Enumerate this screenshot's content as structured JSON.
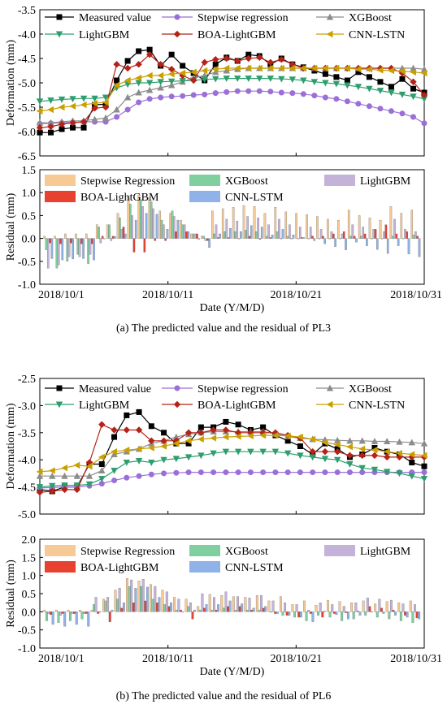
{
  "figure": {
    "caption_a": "(a) The predicted value and the residual of PL3",
    "caption_b": "(b) The predicted value and the residual of PL6"
  },
  "colors": {
    "measured": "#000000",
    "stepwise": "#9b6fd8",
    "xgboost": "#8c8c8c",
    "lightgbm": "#2e9e6e",
    "boa_lightgbm": "#b52217",
    "cnn_lstm": "#c9a000",
    "res_stepwise": "#f6c995",
    "res_xgboost": "#7fcf9f",
    "res_lightgbm": "#c4b3d8",
    "res_boa": "#e8412f",
    "res_cnn": "#8fb3e8"
  },
  "chart_data": [
    {
      "id": "pl3_deformation",
      "type": "line",
      "ylabel": "Deformation (mm)",
      "xlabel": "",
      "ylim": [
        -6.5,
        -3.5
      ],
      "yticks": [
        -3.5,
        -4.0,
        -4.5,
        -5.0,
        -5.5,
        -6.0,
        -6.5
      ],
      "xticks": [
        "",
        "",
        "",
        ""
      ],
      "series": [
        {
          "name": "Measured value",
          "key": "measured",
          "marker": "square",
          "values": [
            -6.02,
            -6.02,
            -5.95,
            -5.92,
            -5.92,
            -5.45,
            -5.44,
            -4.95,
            -4.55,
            -4.35,
            -4.32,
            -4.65,
            -4.42,
            -4.65,
            -4.8,
            -4.95,
            -4.62,
            -4.48,
            -4.55,
            -4.42,
            -4.45,
            -4.62,
            -4.5,
            -4.62,
            -4.68,
            -4.75,
            -4.82,
            -4.88,
            -4.95,
            -4.78,
            -4.88,
            -4.98,
            -5.08,
            -4.92,
            -5.12,
            -5.2
          ]
        },
        {
          "name": "Stepwise regression",
          "key": "stepwise",
          "marker": "circle",
          "values": [
            -5.84,
            -5.83,
            -5.82,
            -5.81,
            -5.8,
            -5.8,
            -5.8,
            -5.7,
            -5.55,
            -5.4,
            -5.33,
            -5.3,
            -5.28,
            -5.27,
            -5.25,
            -5.24,
            -5.21,
            -5.19,
            -5.17,
            -5.17,
            -5.17,
            -5.18,
            -5.2,
            -5.21,
            -5.23,
            -5.26,
            -5.3,
            -5.33,
            -5.38,
            -5.43,
            -5.48,
            -5.53,
            -5.58,
            -5.63,
            -5.7,
            -5.83
          ]
        },
        {
          "name": "XGBoost",
          "key": "xgboost",
          "marker": "triangle-up",
          "values": [
            -5.82,
            -5.82,
            -5.8,
            -5.78,
            -5.78,
            -5.75,
            -5.72,
            -5.55,
            -5.3,
            -5.2,
            -5.15,
            -5.1,
            -5.05,
            -4.98,
            -4.9,
            -4.85,
            -4.78,
            -4.75,
            -4.72,
            -4.7,
            -4.7,
            -4.7,
            -4.7,
            -4.7,
            -4.7,
            -4.7,
            -4.7,
            -4.7,
            -4.7,
            -4.7,
            -4.7,
            -4.7,
            -4.7,
            -4.7,
            -4.7,
            -4.72
          ]
        },
        {
          "name": "LightGBM",
          "key": "lightgbm",
          "marker": "triangle-down",
          "values": [
            -5.38,
            -5.36,
            -5.34,
            -5.33,
            -5.32,
            -5.32,
            -5.3,
            -5.1,
            -5.03,
            -5.0,
            -5.0,
            -4.98,
            -4.97,
            -4.96,
            -4.95,
            -4.93,
            -4.92,
            -4.91,
            -4.91,
            -4.91,
            -4.91,
            -4.91,
            -4.92,
            -4.93,
            -4.95,
            -4.98,
            -5.0,
            -5.02,
            -5.05,
            -5.08,
            -5.12,
            -5.16,
            -5.2,
            -5.24,
            -5.28,
            -5.33
          ]
        },
        {
          "name": "BOA-LightGBM",
          "key": "boa_lightgbm",
          "marker": "diamond",
          "values": [
            -5.92,
            -5.9,
            -5.85,
            -5.82,
            -5.8,
            -5.52,
            -5.5,
            -4.62,
            -4.7,
            -4.62,
            -4.42,
            -4.62,
            -4.72,
            -4.85,
            -4.95,
            -4.58,
            -4.52,
            -4.5,
            -4.55,
            -4.5,
            -4.48,
            -4.58,
            -4.52,
            -4.62,
            -4.7,
            -4.7,
            -4.7,
            -4.7,
            -4.7,
            -4.7,
            -4.7,
            -4.7,
            -4.7,
            -4.8,
            -4.98,
            -5.25
          ]
        },
        {
          "name": "CNN-LSTN",
          "key": "cnn_lstm",
          "marker": "triangle-left",
          "values": [
            -5.58,
            -5.55,
            -5.5,
            -5.48,
            -5.45,
            -5.42,
            -5.4,
            -5.05,
            -4.95,
            -4.9,
            -4.85,
            -4.85,
            -4.82,
            -4.8,
            -4.78,
            -4.75,
            -4.72,
            -4.7,
            -4.7,
            -4.7,
            -4.7,
            -4.7,
            -4.7,
            -4.7,
            -4.7,
            -4.7,
            -4.7,
            -4.7,
            -4.7,
            -4.72,
            -4.72,
            -4.74,
            -4.75,
            -4.76,
            -4.78,
            -4.8
          ]
        }
      ]
    },
    {
      "id": "pl3_residual",
      "type": "bar",
      "ylabel": "Residual (mm)",
      "xlabel": "Date (Y/M/D)",
      "ylim": [
        -1.0,
        1.5
      ],
      "yticks": [
        1.5,
        1.0,
        0.5,
        0.0,
        -0.5,
        -1.0
      ],
      "xticks": [
        "2018/10/1",
        "2018/10/11",
        "2018/10/21",
        "2018/10/31"
      ],
      "series": [
        {
          "name": "Stepwise Regression",
          "key": "res_stepwise",
          "values": [
            0.05,
            0.05,
            0.1,
            0.1,
            0.1,
            0.3,
            0.3,
            0.55,
            0.9,
            0.95,
            0.9,
            0.6,
            0.55,
            0.4,
            0.1,
            0.05,
            0.6,
            0.65,
            0.68,
            0.72,
            0.7,
            0.55,
            0.68,
            0.58,
            0.55,
            0.52,
            0.48,
            0.42,
            0.4,
            0.62,
            0.5,
            0.45,
            0.4,
            0.7,
            0.55,
            0.62
          ]
        },
        {
          "name": "XGBoost",
          "key": "res_xgboost",
          "values": [
            -0.25,
            -0.65,
            -0.5,
            -0.35,
            -0.55,
            0.25,
            0.3,
            0.45,
            0.75,
            0.85,
            0.8,
            0.4,
            0.6,
            0.3,
            0.1,
            0.05,
            0.1,
            0.15,
            0.15,
            0.18,
            0.15,
            0.05,
            0.15,
            0.05,
            0.0,
            0.0,
            0.0,
            0.0,
            0.0,
            0.05,
            0.05,
            0.0,
            0.0,
            0.05,
            0.0,
            0.08
          ]
        },
        {
          "name": "LightGBM",
          "key": "res_lightgbm",
          "values": [
            -0.65,
            -0.58,
            -0.4,
            -0.4,
            -0.35,
            -0.1,
            -0.05,
            0.2,
            0.5,
            0.7,
            0.65,
            0.3,
            0.48,
            0.3,
            0.1,
            -0.05,
            0.3,
            0.42,
            0.38,
            0.48,
            0.45,
            0.3,
            0.42,
            0.3,
            0.25,
            0.25,
            0.2,
            0.15,
            0.1,
            0.3,
            0.25,
            0.2,
            0.15,
            0.42,
            0.2,
            0.15
          ]
        },
        {
          "name": "BOA-LightGBM",
          "key": "res_boa",
          "values": [
            -0.1,
            -0.12,
            -0.1,
            -0.12,
            -0.12,
            0.05,
            0.05,
            0.25,
            -0.3,
            -0.3,
            -0.05,
            -0.05,
            0.15,
            0.15,
            0.1,
            -0.05,
            0.02,
            0.02,
            0.0,
            0.05,
            -0.02,
            0.02,
            0.0,
            0.0,
            0.02,
            0.05,
            0.05,
            0.1,
            0.15,
            0.05,
            0.1,
            0.2,
            0.3,
            0.1,
            0.15,
            0.05
          ]
        },
        {
          "name": "CNN-LSTM",
          "key": "res_cnn",
          "values": [
            -0.44,
            -0.47,
            -0.45,
            -0.44,
            -0.47,
            0.0,
            0.04,
            0.1,
            0.4,
            0.55,
            0.53,
            0.2,
            0.4,
            0.15,
            -0.02,
            -0.2,
            0.1,
            0.22,
            0.15,
            0.28,
            0.25,
            0.08,
            0.2,
            0.08,
            0.02,
            -0.05,
            -0.12,
            -0.18,
            -0.25,
            -0.08,
            -0.16,
            -0.24,
            -0.33,
            -0.16,
            -0.34,
            -0.4
          ]
        }
      ]
    },
    {
      "id": "pl6_deformation",
      "type": "line",
      "ylabel": "Deformation (mm)",
      "xlabel": "",
      "ylim": [
        -5.0,
        -2.5
      ],
      "yticks": [
        -2.5,
        -3.0,
        -3.5,
        -4.0,
        -4.5,
        -5.0
      ],
      "xticks": [
        "",
        "",
        "",
        ""
      ],
      "series": [
        {
          "name": "Measured value",
          "key": "measured",
          "marker": "square",
          "values": [
            -4.55,
            -4.58,
            -4.5,
            -4.5,
            -4.08,
            -4.08,
            -3.58,
            -3.18,
            -3.12,
            -3.38,
            -3.5,
            -3.7,
            -3.7,
            -3.4,
            -3.4,
            -3.3,
            -3.35,
            -3.45,
            -3.4,
            -3.55,
            -3.65,
            -3.75,
            -3.9,
            -3.7,
            -3.8,
            -3.95,
            -3.9,
            -3.78,
            -3.85,
            -3.9,
            -4.05,
            -4.12
          ]
        },
        {
          "name": "Stepwise regression",
          "key": "stepwise",
          "marker": "circle",
          "values": [
            -4.52,
            -4.51,
            -4.5,
            -4.5,
            -4.48,
            -4.44,
            -4.38,
            -4.33,
            -4.3,
            -4.27,
            -4.25,
            -4.24,
            -4.23,
            -4.23,
            -4.23,
            -4.23,
            -4.23,
            -4.23,
            -4.23,
            -4.23,
            -4.23,
            -4.23,
            -4.23,
            -4.23,
            -4.23,
            -4.23,
            -4.23,
            -4.23,
            -4.23,
            -4.23,
            -4.23,
            -4.23
          ]
        },
        {
          "name": "XGBoost",
          "key": "xgboost",
          "marker": "triangle-up",
          "values": [
            -4.3,
            -4.3,
            -4.3,
            -4.3,
            -4.3,
            -4.2,
            -3.9,
            -3.85,
            -3.8,
            -3.7,
            -3.65,
            -3.58,
            -3.53,
            -3.5,
            -3.48,
            -3.48,
            -3.48,
            -3.48,
            -3.48,
            -3.52,
            -3.57,
            -3.6,
            -3.62,
            -3.63,
            -3.64,
            -3.65,
            -3.65,
            -3.66,
            -3.66,
            -3.67,
            -3.68,
            -3.7
          ]
        },
        {
          "name": "LightGBM",
          "key": "lightgbm",
          "marker": "triangle-down",
          "values": [
            -4.5,
            -4.48,
            -4.47,
            -4.47,
            -4.45,
            -4.35,
            -4.2,
            -4.05,
            -4.02,
            -4.05,
            -4.0,
            -3.98,
            -3.95,
            -3.92,
            -3.88,
            -3.85,
            -3.85,
            -3.85,
            -3.85,
            -3.85,
            -3.88,
            -3.92,
            -3.95,
            -3.98,
            -4.0,
            -4.08,
            -4.15,
            -4.18,
            -4.22,
            -4.25,
            -4.3,
            -4.35
          ]
        },
        {
          "name": "BOA-LightGBM",
          "key": "boa_lightgbm",
          "marker": "diamond",
          "values": [
            -4.6,
            -4.58,
            -4.55,
            -4.55,
            -4.05,
            -3.35,
            -3.45,
            -3.45,
            -3.45,
            -3.65,
            -3.65,
            -3.65,
            -3.5,
            -3.5,
            -3.45,
            -3.45,
            -3.5,
            -3.5,
            -3.5,
            -3.5,
            -3.55,
            -3.6,
            -3.85,
            -3.85,
            -3.85,
            -3.92,
            -3.92,
            -3.92,
            -3.95,
            -3.95,
            -3.95,
            -3.95
          ]
        },
        {
          "name": "CNN-LSTN",
          "key": "cnn_lstm",
          "marker": "triangle-left",
          "values": [
            -4.22,
            -4.2,
            -4.15,
            -4.1,
            -4.12,
            -3.95,
            -3.85,
            -3.82,
            -3.8,
            -3.78,
            -3.75,
            -3.7,
            -3.65,
            -3.62,
            -3.6,
            -3.58,
            -3.57,
            -3.56,
            -3.55,
            -3.55,
            -3.56,
            -3.58,
            -3.62,
            -3.68,
            -3.72,
            -3.76,
            -3.8,
            -3.82,
            -3.85,
            -3.88,
            -3.9,
            -3.92
          ]
        }
      ]
    },
    {
      "id": "pl6_residual",
      "type": "bar",
      "ylabel": "Residual (mm)",
      "xlabel": "Date (Y/M/D)",
      "ylim": [
        -1.0,
        2.0
      ],
      "yticks": [
        2.0,
        1.5,
        1.0,
        0.5,
        0.0,
        -0.5,
        -1.0
      ],
      "xticks": [
        "2018/10/1",
        "2018/10/11",
        "2018/10/21",
        "2018/10/31"
      ],
      "series": [
        {
          "name": "Stepwise Regression",
          "key": "res_stepwise",
          "values": [
            0.05,
            0.05,
            0.05,
            0.05,
            0.05,
            0.35,
            0.6,
            0.92,
            0.85,
            0.75,
            0.6,
            0.4,
            0.35,
            0.15,
            0.48,
            0.45,
            0.42,
            0.4,
            0.45,
            0.3,
            0.42,
            0.2,
            0.3,
            0.18,
            0.32,
            0.28,
            0.25,
            0.3,
            0.22,
            0.28,
            0.25,
            0.3
          ]
        },
        {
          "name": "XGBoost",
          "key": "res_xgboost",
          "values": [
            -0.25,
            -0.3,
            -0.25,
            -0.2,
            0.2,
            0.3,
            0.35,
            0.7,
            0.7,
            0.35,
            0.2,
            0.05,
            0.15,
            0.05,
            0.05,
            0.1,
            0.05,
            0.05,
            0.05,
            0.0,
            -0.1,
            -0.15,
            -0.25,
            -0.1,
            -0.15,
            -0.25,
            -0.2,
            -0.1,
            -0.15,
            -0.2,
            -0.25,
            -0.3
          ]
        },
        {
          "name": "LightGBM",
          "key": "res_lightgbm",
          "values": [
            -0.05,
            -0.1,
            -0.05,
            -0.05,
            0.4,
            0.4,
            0.65,
            0.88,
            0.9,
            0.7,
            0.55,
            0.35,
            0.25,
            0.5,
            0.4,
            0.55,
            0.42,
            0.38,
            0.45,
            0.3,
            0.25,
            0.2,
            0.05,
            0.25,
            0.2,
            0.15,
            0.25,
            0.38,
            0.35,
            0.32,
            0.22,
            0.2
          ]
        },
        {
          "name": "BOA-LightGBM",
          "key": "res_boa",
          "values": [
            -0.08,
            -0.05,
            -0.05,
            -0.05,
            -0.05,
            -0.28,
            0.1,
            0.25,
            0.3,
            0.25,
            0.15,
            0.05,
            -0.2,
            0.1,
            0.05,
            0.15,
            0.15,
            0.05,
            0.1,
            -0.05,
            -0.1,
            -0.15,
            -0.05,
            -0.15,
            -0.05,
            -0.03,
            0.02,
            0.15,
            0.1,
            0.05,
            -0.1,
            -0.17
          ]
        },
        {
          "name": "CNN-LSTM",
          "key": "res_cnn",
          "values": [
            -0.35,
            -0.4,
            -0.35,
            -0.4,
            0.0,
            0.05,
            0.25,
            0.65,
            0.68,
            0.4,
            0.25,
            0.0,
            0.05,
            0.2,
            0.2,
            0.3,
            0.22,
            0.1,
            0.15,
            -0.05,
            -0.1,
            -0.15,
            -0.28,
            0.02,
            -0.08,
            -0.2,
            -0.1,
            0.0,
            -0.05,
            -0.1,
            -0.15,
            -0.2
          ]
        }
      ]
    }
  ]
}
